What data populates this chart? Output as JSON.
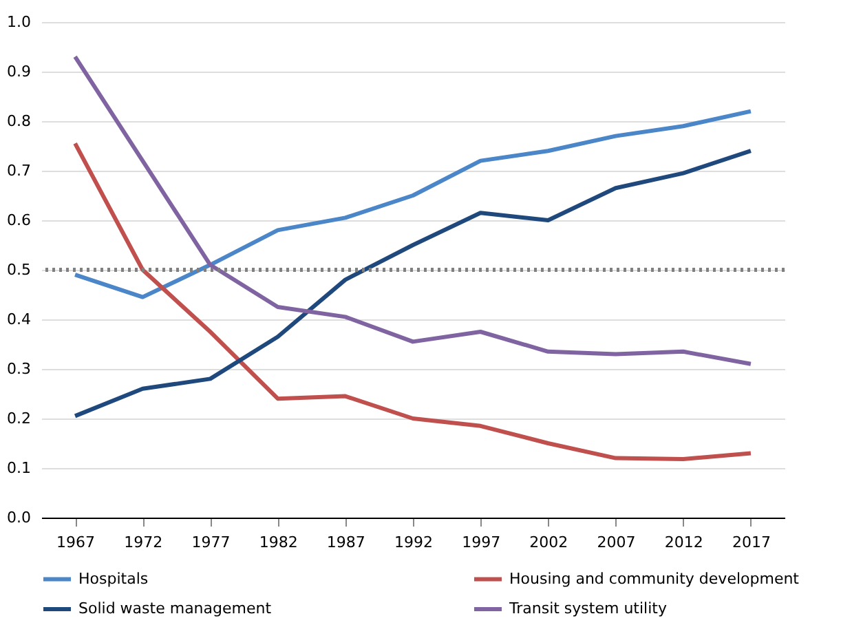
{
  "chart_data": {
    "type": "line",
    "categories": [
      "1967",
      "1972",
      "1977",
      "1982",
      "1987",
      "1992",
      "1997",
      "2002",
      "2007",
      "2012",
      "2017"
    ],
    "series": [
      {
        "name": "Hospitals",
        "color": "#4a86c8",
        "values": [
          0.49,
          0.445,
          0.51,
          0.58,
          0.605,
          0.65,
          0.72,
          0.74,
          0.77,
          0.79,
          0.82
        ]
      },
      {
        "name": "Housing and community development",
        "color": "#c0504d",
        "values": [
          0.755,
          0.5,
          0.375,
          0.24,
          0.245,
          0.2,
          0.185,
          0.15,
          0.12,
          0.118,
          0.13
        ]
      },
      {
        "name": "Solid waste management",
        "color": "#1f497d",
        "values": [
          0.205,
          0.26,
          0.28,
          0.365,
          0.48,
          0.55,
          0.615,
          0.6,
          0.665,
          0.695,
          0.74
        ]
      },
      {
        "name": "Transit system utility",
        "color": "#8064a2",
        "values": [
          0.93,
          0.72,
          0.51,
          0.425,
          0.405,
          0.355,
          0.375,
          0.335,
          0.33,
          0.335,
          0.31
        ]
      }
    ],
    "ylim": [
      0,
      1.0
    ],
    "yticks": [
      {
        "value": 0,
        "label": "0.0"
      },
      {
        "value": 0.1,
        "label": "0.1"
      },
      {
        "value": 0.2,
        "label": "0.2"
      },
      {
        "value": 0.3,
        "label": "0.3"
      },
      {
        "value": 0.4,
        "label": "0.4"
      },
      {
        "value": 0.5,
        "label": "0.5"
      },
      {
        "value": 0.6,
        "label": "0.6"
      },
      {
        "value": 0.7,
        "label": "0.7"
      },
      {
        "value": 0.8,
        "label": "0.8"
      },
      {
        "value": 0.9,
        "label": "0.9"
      },
      {
        "value": 1.0,
        "label": "1.0"
      }
    ],
    "ref_lines": [
      {
        "axis": "y",
        "value": 0.5,
        "color": "#808080",
        "line_style": "dotted"
      }
    ],
    "grid": "y",
    "legend": "bottom",
    "line_style": "solid",
    "marker": "none"
  }
}
